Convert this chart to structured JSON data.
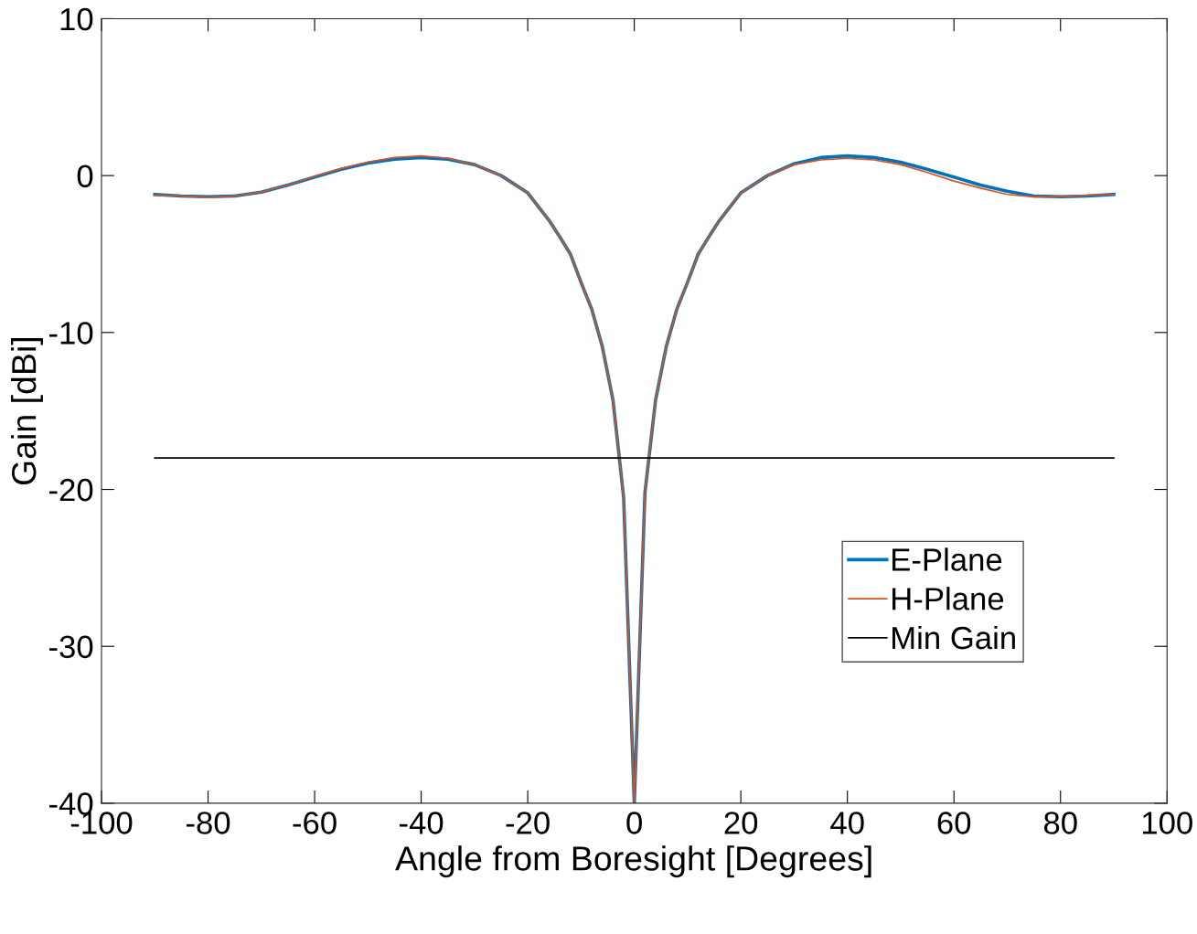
{
  "chart_data": {
    "type": "line",
    "xlabel": "Angle from Boresight [Degrees]",
    "ylabel": "Gain [dBi]",
    "xlim": [
      -100,
      100
    ],
    "xticks": [
      -100,
      -80,
      -60,
      -40,
      -20,
      0,
      20,
      40,
      60,
      80,
      100
    ],
    "ylim": [
      -40,
      10
    ],
    "yticks": [
      -40,
      -30,
      -20,
      -10,
      0,
      10
    ],
    "grid": false,
    "legend": "lower right",
    "marker": "none",
    "line_style": "solid",
    "series": [
      {
        "name": "E-Plane",
        "color": "#0072bd",
        "x": [
          -90,
          -85,
          -80,
          -75,
          -70,
          -65,
          -60,
          -55,
          -50,
          -45,
          -40,
          -35,
          -30,
          -25,
          -20,
          -16,
          -14,
          -12,
          -10,
          -8,
          -6,
          -4,
          -2,
          0,
          2,
          4,
          6,
          8,
          10,
          12,
          14,
          16,
          20,
          25,
          30,
          35,
          40,
          45,
          50,
          55,
          60,
          65,
          70,
          75,
          80,
          85,
          90
        ],
        "values": [
          -1.2,
          -1.3,
          -1.35,
          -1.3,
          -1.05,
          -0.6,
          -0.1,
          0.4,
          0.8,
          1.05,
          1.15,
          1.05,
          0.7,
          0.0,
          -1.1,
          -2.85,
          -3.9,
          -5.0,
          -6.8,
          -8.5,
          -10.9,
          -14.3,
          -20.5,
          -40,
          -20.2,
          -14.3,
          -10.9,
          -8.5,
          -6.8,
          -5.0,
          -3.9,
          -2.85,
          -1.1,
          0.0,
          0.75,
          1.15,
          1.25,
          1.15,
          0.85,
          0.4,
          -0.1,
          -0.6,
          -1.0,
          -1.3,
          -1.35,
          -1.3,
          -1.2
        ]
      },
      {
        "name": "H-Plane",
        "color": "#d95319",
        "x": [
          -90,
          -85,
          -80,
          -75,
          -70,
          -65,
          -60,
          -55,
          -50,
          -45,
          -40,
          -35,
          -30,
          -25,
          -20,
          -16,
          -14,
          -12,
          -10,
          -8,
          -6,
          -4,
          -2,
          0,
          2,
          4,
          6,
          8,
          10,
          12,
          14,
          16,
          20,
          25,
          30,
          35,
          40,
          45,
          50,
          55,
          60,
          65,
          70,
          75,
          80,
          85,
          90
        ],
        "values": [
          -1.25,
          -1.3,
          -1.4,
          -1.3,
          -1.05,
          -0.6,
          -0.05,
          0.45,
          0.85,
          1.15,
          1.25,
          1.1,
          0.7,
          0.0,
          -1.1,
          -2.85,
          -3.9,
          -5.0,
          -6.8,
          -8.5,
          -10.9,
          -14.3,
          -20.5,
          -40,
          -20.2,
          -14.3,
          -10.9,
          -8.5,
          -6.8,
          -5.0,
          -3.9,
          -2.85,
          -1.1,
          0.0,
          0.7,
          1.0,
          1.1,
          1.0,
          0.7,
          0.2,
          -0.35,
          -0.8,
          -1.2,
          -1.35,
          -1.35,
          -1.25,
          -1.2
        ]
      },
      {
        "name": "Min Gain",
        "color": "#000000",
        "x": [
          -90,
          90
        ],
        "values": [
          -18,
          -18
        ]
      }
    ]
  }
}
